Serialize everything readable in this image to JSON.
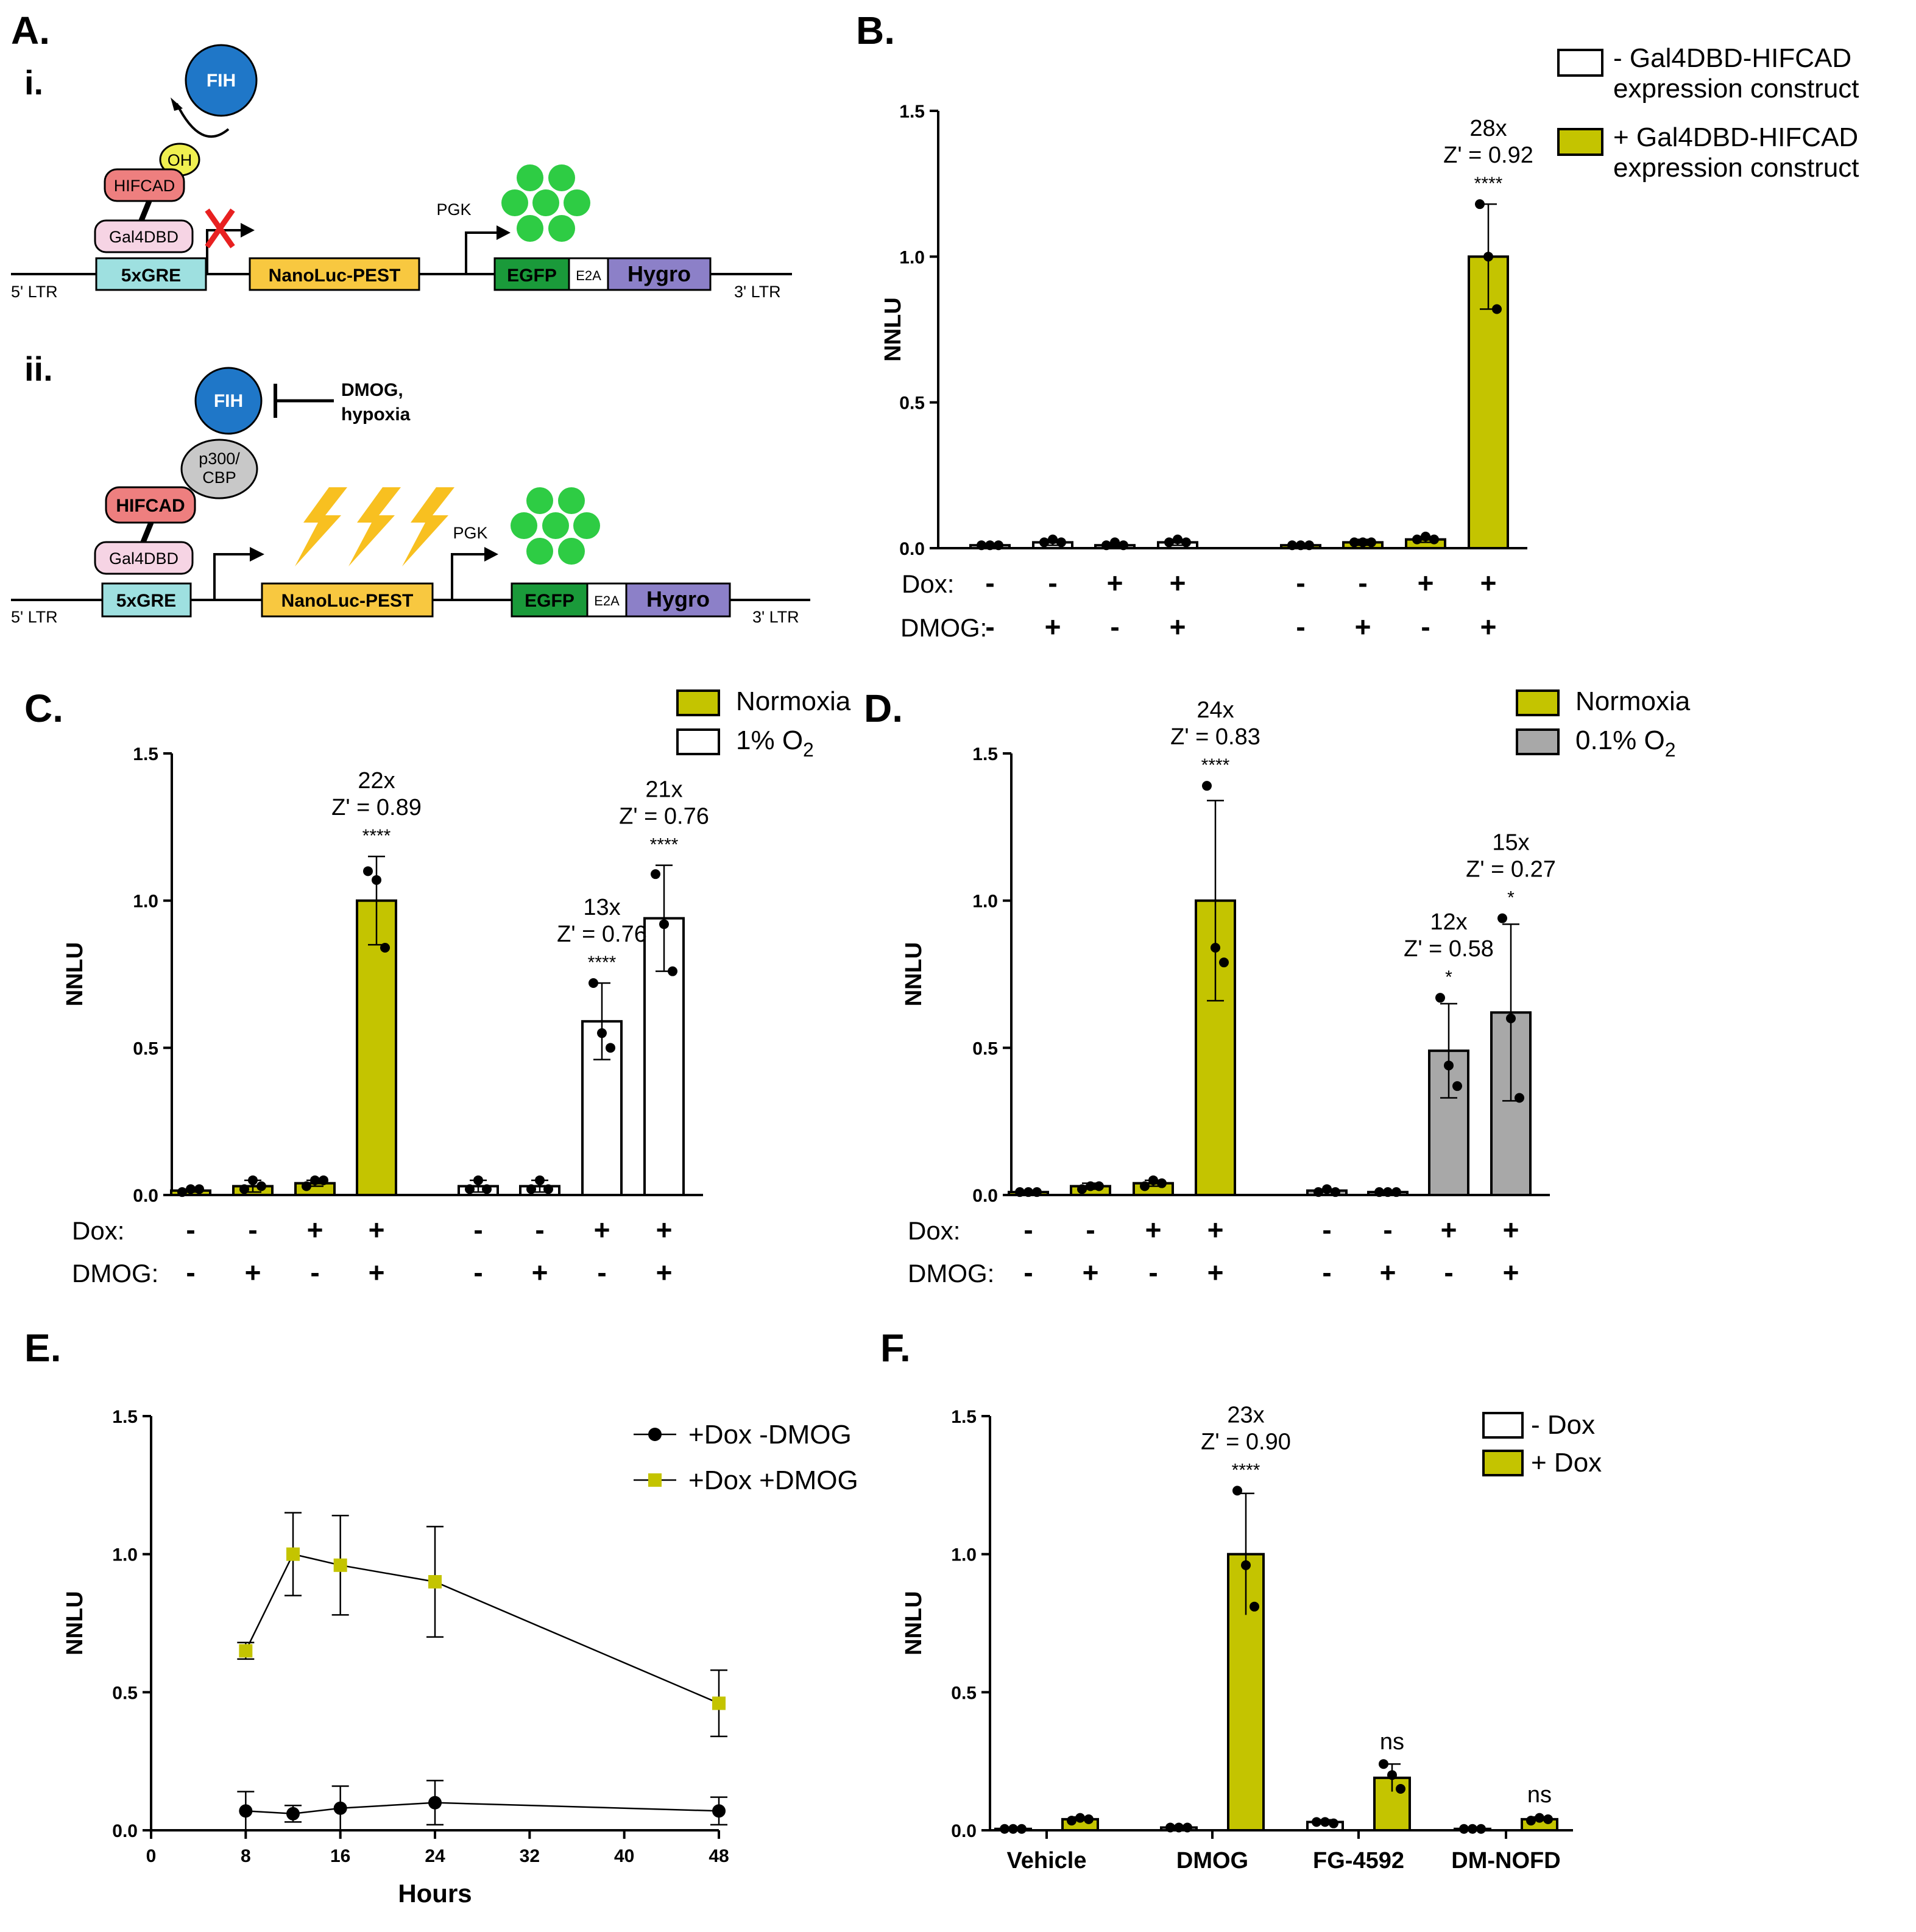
{
  "colors": {
    "olive": "#c4c400",
    "grey": "#a8a8a8",
    "white": "#ffffff",
    "fih": "#1f77c8",
    "hifcad": "#ee7f7f",
    "gal4": "#f6d4e4",
    "gre": "#9ee0e0",
    "nanoluc": "#f8c840",
    "egfp": "#1a9a3a",
    "hygro": "#8c80c8",
    "oh": "#f0f050",
    "p300": "#c8c8c8",
    "dot": "#2ecc44",
    "bolt": "#f8c020",
    "cross": "#e82020"
  },
  "panel_labels": {
    "a": "A.",
    "b": "B.",
    "c": "C.",
    "d": "D.",
    "e": "E.",
    "f": "F."
  },
  "diagram": {
    "i_label": "i.",
    "ii_label": "ii.",
    "fih": "FIH",
    "oh": "OH",
    "hifcad": "HIFCAD",
    "gal4dbd": "Gal4DBD",
    "gre": "5xGRE",
    "nanoluc": "NanoLuc-PEST",
    "pgk": "PGK",
    "egfp": "EGFP",
    "e2a": "E2A",
    "hygro": "Hygro",
    "ltr5": "5' LTR",
    "ltr3": "3' LTR",
    "p300_line1": "p300/",
    "p300_line2": "CBP",
    "inhib_line1": "DMOG,",
    "inhib_line2": "hypoxia"
  },
  "chart_data": [
    {
      "id": "B",
      "type": "bar",
      "ylabel": "NNLU",
      "ylim": [
        0,
        1.5
      ],
      "yticks": [
        "0.0",
        "0.5",
        "1.0",
        "1.5"
      ],
      "row_labels": [
        "Dox:",
        "DMOG:"
      ],
      "dox": [
        "-",
        "-",
        "+",
        "+",
        "-",
        "-",
        "+",
        "+"
      ],
      "dmog": [
        "-",
        "+",
        "-",
        "+",
        "-",
        "+",
        "-",
        "+"
      ],
      "series_of_bar": [
        0,
        0,
        0,
        0,
        1,
        1,
        1,
        1
      ],
      "values": [
        0.01,
        0.02,
        0.01,
        0.02,
        0.01,
        0.02,
        0.03,
        1.0
      ],
      "errors": [
        0.005,
        0.01,
        0.005,
        0.01,
        0.005,
        0.01,
        0.01,
        0.18
      ],
      "points": [
        [
          0.01,
          0.01,
          0.01
        ],
        [
          0.02,
          0.03,
          0.02
        ],
        [
          0.01,
          0.02,
          0.01
        ],
        [
          0.02,
          0.03,
          0.02
        ],
        [
          0.01,
          0.01,
          0.01
        ],
        [
          0.02,
          0.02,
          0.02
        ],
        [
          0.03,
          0.04,
          0.03
        ],
        [
          1.18,
          1.0,
          0.82
        ]
      ],
      "legend": [
        "- Gal4DBD-HIFCAD expression construct",
        "+ Gal4DBD-HIFCAD expression construct"
      ],
      "legend_lines": [
        [
          "- Gal4DBD-HIFCAD",
          "expression construct"
        ],
        [
          "+ Gal4DBD-HIFCAD",
          "expression construct"
        ]
      ],
      "series_colors": [
        "#ffffff",
        "#c4c400"
      ],
      "annotations": [
        {
          "bar": 7,
          "lines": [
            "28x",
            "Z' = 0.92",
            "****"
          ]
        }
      ]
    },
    {
      "id": "C",
      "type": "bar",
      "ylabel": "NNLU",
      "ylim": [
        0,
        1.5
      ],
      "yticks": [
        "0.0",
        "0.5",
        "1.0",
        "1.5"
      ],
      "row_labels": [
        "Dox:",
        "DMOG:"
      ],
      "dox": [
        "-",
        "-",
        "+",
        "+",
        "-",
        "-",
        "+",
        "+"
      ],
      "dmog": [
        "-",
        "+",
        "-",
        "+",
        "-",
        "+",
        "-",
        "+"
      ],
      "series_of_bar": [
        0,
        0,
        0,
        0,
        1,
        1,
        1,
        1
      ],
      "values": [
        0.015,
        0.03,
        0.04,
        1.0,
        0.03,
        0.03,
        0.59,
        0.94
      ],
      "errors": [
        0.005,
        0.02,
        0.01,
        0.15,
        0.02,
        0.02,
        0.13,
        0.18
      ],
      "points": [
        [
          0.01,
          0.02,
          0.02
        ],
        [
          0.02,
          0.05,
          0.03
        ],
        [
          0.03,
          0.05,
          0.05
        ],
        [
          1.1,
          1.07,
          0.84
        ],
        [
          0.02,
          0.05,
          0.02
        ],
        [
          0.02,
          0.05,
          0.02
        ],
        [
          0.72,
          0.55,
          0.5
        ],
        [
          1.09,
          0.92,
          0.76
        ]
      ],
      "legend": [
        "Normoxia",
        "1% O"
      ],
      "legend_sub": [
        "",
        "2"
      ],
      "series_colors": [
        "#c4c400",
        "#ffffff"
      ],
      "annotations": [
        {
          "bar": 3,
          "lines": [
            "22x",
            "Z' = 0.89",
            "****"
          ]
        },
        {
          "bar": 6,
          "lines": [
            "13x",
            "Z' = 0.76",
            "****"
          ]
        },
        {
          "bar": 7,
          "lines": [
            "21x",
            "Z' = 0.76",
            "****"
          ]
        }
      ]
    },
    {
      "id": "D",
      "type": "bar",
      "ylabel": "NNLU",
      "ylim": [
        0,
        1.5
      ],
      "yticks": [
        "0.0",
        "0.5",
        "1.0",
        "1.5"
      ],
      "row_labels": [
        "Dox:",
        "DMOG:"
      ],
      "dox": [
        "-",
        "-",
        "+",
        "+",
        "-",
        "-",
        "+",
        "+"
      ],
      "dmog": [
        "-",
        "+",
        "-",
        "+",
        "-",
        "+",
        "-",
        "+"
      ],
      "series_of_bar": [
        0,
        0,
        0,
        0,
        1,
        1,
        1,
        1
      ],
      "values": [
        0.01,
        0.03,
        0.04,
        1.0,
        0.015,
        0.01,
        0.49,
        0.62
      ],
      "errors": [
        0.005,
        0.01,
        0.01,
        0.34,
        0.005,
        0.005,
        0.16,
        0.3
      ],
      "points": [
        [
          0.01,
          0.01,
          0.01
        ],
        [
          0.02,
          0.03,
          0.03
        ],
        [
          0.03,
          0.05,
          0.04
        ],
        [
          1.39,
          0.84,
          0.79
        ],
        [
          0.01,
          0.02,
          0.01
        ],
        [
          0.01,
          0.01,
          0.01
        ],
        [
          0.67,
          0.44,
          0.37
        ],
        [
          0.94,
          0.6,
          0.33
        ]
      ],
      "legend": [
        "Normoxia",
        "0.1% O"
      ],
      "legend_sub": [
        "",
        "2"
      ],
      "series_colors": [
        "#c4c400",
        "#a8a8a8"
      ],
      "annotations": [
        {
          "bar": 3,
          "lines": [
            "24x",
            "Z' = 0.83",
            "****"
          ]
        },
        {
          "bar": 6,
          "lines": [
            "12x",
            "Z' = 0.58",
            "*"
          ]
        },
        {
          "bar": 7,
          "lines": [
            "15x",
            "Z' = 0.27",
            "*"
          ]
        }
      ]
    },
    {
      "id": "E",
      "type": "line",
      "ylabel": "NNLU",
      "xlabel": "Hours",
      "ylim": [
        0,
        1.5
      ],
      "xlim": [
        0,
        48
      ],
      "yticks": [
        "0.0",
        "0.5",
        "1.0",
        "1.5"
      ],
      "xticks": [
        "0",
        "8",
        "16",
        "24",
        "32",
        "40",
        "48"
      ],
      "series": [
        {
          "name": "+Dox -DMOG",
          "marker": "circle",
          "color": "#000000",
          "x": [
            8,
            12,
            16,
            24,
            48
          ],
          "values": [
            0.07,
            0.06,
            0.08,
            0.1,
            0.07
          ],
          "errors": [
            0.07,
            0.03,
            0.08,
            0.08,
            0.05
          ]
        },
        {
          "name": "+Dox +DMOG",
          "marker": "square",
          "color": "#c4c400",
          "x": [
            8,
            12,
            16,
            24,
            48
          ],
          "values": [
            0.65,
            1.0,
            0.96,
            0.9,
            0.46
          ],
          "errors": [
            0.03,
            0.15,
            0.18,
            0.2,
            0.12
          ]
        }
      ]
    },
    {
      "id": "F",
      "type": "bar",
      "ylabel": "NNLU",
      "ylim": [
        0,
        1.5
      ],
      "yticks": [
        "0.0",
        "0.5",
        "1.0",
        "1.5"
      ],
      "categories": [
        "Vehicle",
        "DMOG",
        "FG-4592",
        "DM-NOFD"
      ],
      "legend": [
        "- Dox",
        "+ Dox"
      ],
      "series_colors": [
        "#ffffff",
        "#c4c400"
      ],
      "series": [
        {
          "name": "- Dox",
          "values": [
            0.005,
            0.01,
            0.03,
            0.005
          ],
          "errors": [
            0.003,
            0.005,
            0.008,
            0.003
          ],
          "points": [
            [
              0.005,
              0.005,
              0.005
            ],
            [
              0.01,
              0.01,
              0.01
            ],
            [
              0.03,
              0.03,
              0.025
            ],
            [
              0.005,
              0.005,
              0.005
            ]
          ]
        },
        {
          "name": "+ Dox",
          "values": [
            0.04,
            1.0,
            0.19,
            0.04
          ],
          "errors": [
            0.008,
            0.22,
            0.05,
            0.008
          ],
          "points": [
            [
              0.035,
              0.045,
              0.04
            ],
            [
              1.23,
              0.96,
              0.81
            ],
            [
              0.24,
              0.2,
              0.15
            ],
            [
              0.035,
              0.045,
              0.04
            ]
          ]
        }
      ],
      "annotations": [
        {
          "category": 1,
          "lines": [
            "23x",
            "Z' = 0.90",
            "****"
          ]
        },
        {
          "category": 2,
          "lines": [
            "ns"
          ]
        },
        {
          "category": 3,
          "lines": [
            "ns"
          ]
        }
      ]
    }
  ]
}
